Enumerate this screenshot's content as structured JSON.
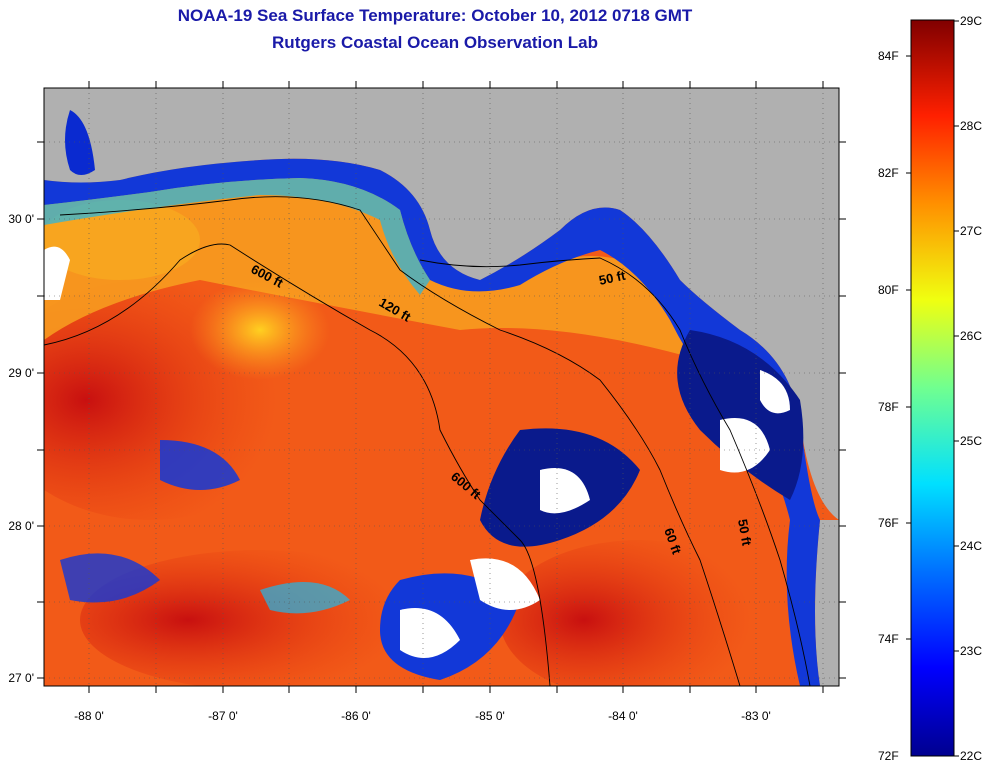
{
  "header": {
    "title": "NOAA-19 Sea Surface Temperature:  October 10, 2012 0718 GMT",
    "subtitle": "Rutgers Coastal Ocean Observation Lab"
  },
  "map": {
    "longitude_ticks": [
      "-88 0'",
      "-87 0'",
      "-86 0'",
      "-85 0'",
      "-84 0'",
      "-83 0'"
    ],
    "latitude_ticks": [
      "30 0'",
      "29 0'",
      "28 0'",
      "27 0'"
    ],
    "contour_labels": [
      "600 ft",
      "120 ft",
      "50 ft",
      "600 ft",
      "50 ft",
      "60 ft"
    ],
    "colors": {
      "land": "#b0b0b0",
      "cloud": "#ffffff",
      "coast": "#0a1a8c"
    }
  },
  "colorbar": {
    "celsius_labels": [
      "29C",
      "28C",
      "27C",
      "26C",
      "25C",
      "24C",
      "23C",
      "22C"
    ],
    "fahrenheit_labels": [
      "84F",
      "82F",
      "80F",
      "78F",
      "76F",
      "74F",
      "72F"
    ],
    "min_c": 22,
    "max_c": 29
  }
}
